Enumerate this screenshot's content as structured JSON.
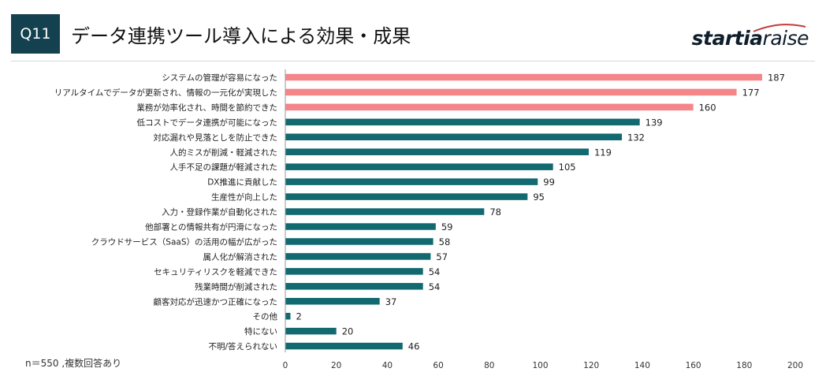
{
  "question_label": "Q11",
  "title": "データ連携ツール導入による効果・成果",
  "logo": {
    "bold": "startia",
    "light": "raise"
  },
  "note": "n＝550 ,複数回答あり",
  "colors": {
    "highlight": "#f4868a",
    "main": "#126a70",
    "badge": "#14414f"
  },
  "chart_data": {
    "type": "bar",
    "orientation": "horizontal",
    "categories": [
      "システムの管理が容易になった",
      "リアルタイムでデータが更新され、情報の一元化が実現した",
      "業務が効率化され、時間を節約できた",
      "低コストでデータ連携が可能になった",
      "対応漏れや見落としを防止できた",
      "人的ミスが削減・軽減された",
      "人手不足の課題が軽減された",
      "DX推進に貢献した",
      "生産性が向上した",
      "入力・登録作業が自動化された",
      "他部署との情報共有が円滑になった",
      "クラウドサービス（SaaS）の活用の幅が広がった",
      "属人化が解消された",
      "セキュリティリスクを軽減できた",
      "残業時間が削減された",
      "顧客対応が迅速かつ正確になった",
      "その他",
      "特にない",
      "不明/答えられない"
    ],
    "values": [
      187,
      177,
      160,
      139,
      132,
      119,
      105,
      99,
      95,
      78,
      59,
      58,
      57,
      54,
      54,
      37,
      2,
      20,
      46
    ],
    "highlight_top": 3,
    "xlim": [
      0,
      200
    ],
    "xticks": [
      0,
      20,
      40,
      60,
      80,
      100,
      120,
      140,
      160,
      180,
      200
    ],
    "grid": false
  }
}
